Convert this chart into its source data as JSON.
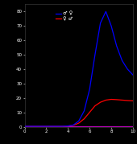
{
  "background_color": "#000000",
  "plot_bg_color": "#000000",
  "text_color": "#ffffff",
  "blue_line_x": [
    0,
    5,
    10,
    15,
    20,
    25,
    30,
    35,
    40,
    45,
    50,
    55,
    60,
    65,
    70,
    75,
    80,
    85,
    90,
    95,
    100
  ],
  "blue_line_y": [
    0.3,
    0.3,
    0.3,
    0.3,
    0.3,
    0.3,
    0.3,
    0.3,
    0.5,
    1.2,
    4.0,
    11.0,
    26.0,
    50.0,
    72.0,
    80.0,
    70.0,
    56.0,
    46.0,
    40.0,
    36.0
  ],
  "red_line_x": [
    0,
    5,
    10,
    15,
    20,
    25,
    30,
    35,
    40,
    45,
    50,
    55,
    60,
    65,
    70,
    75,
    80,
    85,
    90,
    95,
    100
  ],
  "red_line_y": [
    0.3,
    0.3,
    0.3,
    0.3,
    0.3,
    0.3,
    0.3,
    0.3,
    0.5,
    1.0,
    2.5,
    5.5,
    10.0,
    14.5,
    17.0,
    18.5,
    19.0,
    18.8,
    18.5,
    18.2,
    18.0
  ],
  "blue_color": "#0000ff",
  "red_color": "#ff0000",
  "magenta_color": "#bb00bb",
  "xlim": [
    0,
    100
  ],
  "ylim": [
    0,
    85
  ],
  "yticks": [
    0,
    10,
    20,
    30,
    40,
    50,
    60,
    70,
    80
  ],
  "xtick_positions": [
    0,
    20,
    40,
    60,
    80,
    100
  ],
  "xtick_labels": [
    "0",
    "2",
    "4",
    "6",
    "8",
    "10"
  ],
  "legend_label_blue": "♂ ♀",
  "legend_label_red": "♀ ♂",
  "legend_fontsize": 4.5,
  "tick_fontsize": 4,
  "line_width": 0.9,
  "figsize": [
    1.7,
    1.79
  ],
  "dpi": 100
}
